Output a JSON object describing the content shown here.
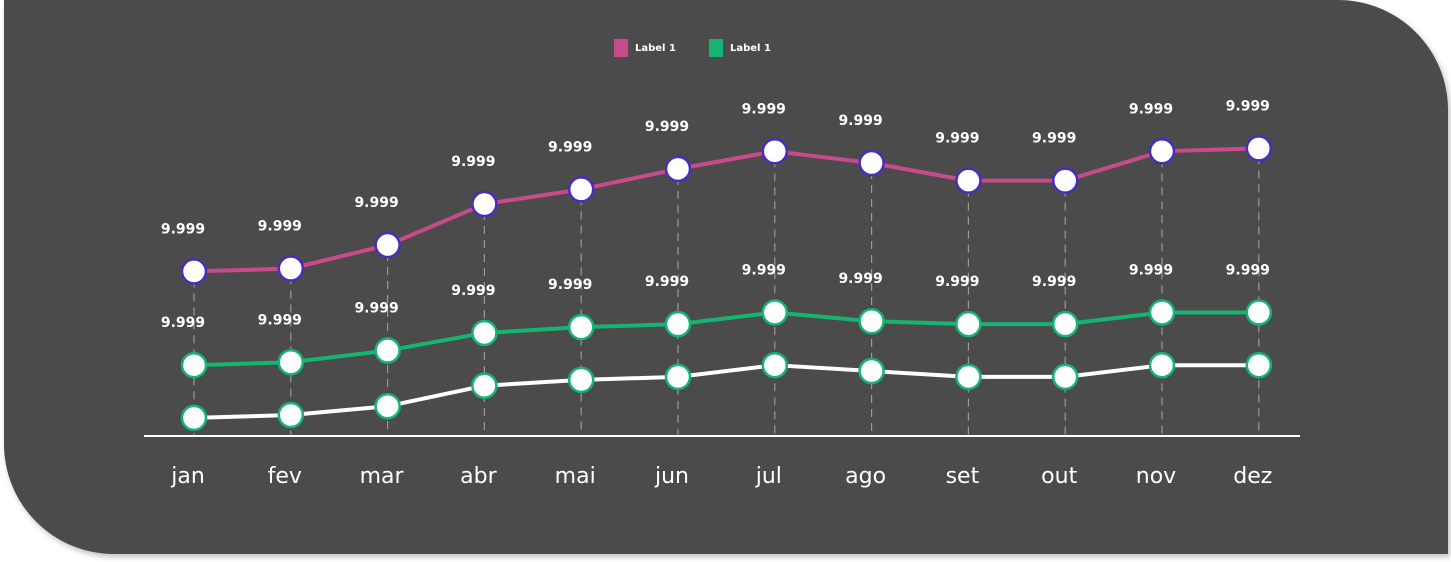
{
  "chart_data": {
    "type": "line",
    "categories": [
      "jan",
      "fev",
      "mar",
      "abr",
      "mai",
      "jun",
      "jul",
      "ago",
      "set",
      "out",
      "nov",
      "dez"
    ],
    "series": [
      {
        "name": "Label 1",
        "color": "#c74b8a",
        "marker_stroke": "#4b2bbf",
        "values": [
          49,
          50,
          58,
          72,
          77,
          84,
          90,
          86,
          80,
          80,
          90,
          91
        ],
        "labels": [
          "9.999",
          "9.999",
          "9.999",
          "9.999",
          "9.999",
          "9.999",
          "9.999",
          "9.999",
          "9.999",
          "9.999",
          "9.999",
          "9.999"
        ]
      },
      {
        "name": "Label 1",
        "color": "#14b473",
        "marker_stroke": "#14b473",
        "values": [
          17,
          18,
          22,
          28,
          30,
          31,
          35,
          32,
          31,
          31,
          35,
          35
        ],
        "labels": [
          "9.999",
          "9.999",
          "9.999",
          "9.999",
          "9.999",
          "9.999",
          "9.999",
          "9.999",
          "9.999",
          "9.999",
          "9.999",
          "9.999"
        ]
      },
      {
        "color": "#ffffff",
        "marker_stroke": "#14b473",
        "values": [
          -1,
          0,
          3,
          10,
          12,
          13,
          17,
          15,
          13,
          13,
          17,
          17
        ]
      }
    ],
    "legend_position": "top-center",
    "gridlines": "vertical-dashed"
  }
}
